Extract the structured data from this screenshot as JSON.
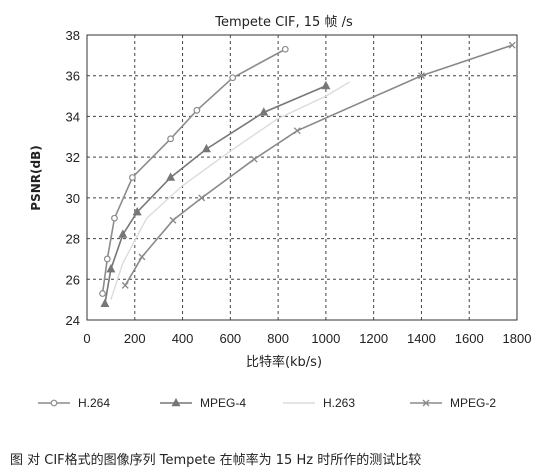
{
  "chart_data": {
    "type": "line",
    "title": "Tempete CIF, 15 帧 /s",
    "xlabel": "比特率(kb/s)",
    "ylabel": "PSNR(dB)",
    "xlim": [
      0,
      1800
    ],
    "ylim": [
      24,
      38
    ],
    "xticks": [
      0,
      200,
      400,
      600,
      800,
      1000,
      1200,
      1400,
      1600,
      1800
    ],
    "yticks": [
      24,
      26,
      28,
      30,
      32,
      34,
      36,
      38
    ],
    "grid": "dashed",
    "legend_position": "bottom",
    "series": [
      {
        "name": "H.264",
        "color": "#8c8c8c",
        "marker": "circle",
        "points": [
          [
            65,
            25.3
          ],
          [
            85,
            27.0
          ],
          [
            115,
            29.0
          ],
          [
            190,
            31.0
          ],
          [
            350,
            32.9
          ],
          [
            460,
            34.3
          ],
          [
            610,
            35.9
          ],
          [
            830,
            37.3
          ]
        ]
      },
      {
        "name": "MPEG-4",
        "color": "#777777",
        "marker": "triangle",
        "points": [
          [
            75,
            24.8
          ],
          [
            100,
            26.5
          ],
          [
            150,
            28.2
          ],
          [
            210,
            29.3
          ],
          [
            350,
            31.0
          ],
          [
            500,
            32.4
          ],
          [
            740,
            34.2
          ],
          [
            1000,
            35.5
          ]
        ]
      },
      {
        "name": "H.263",
        "color": "#dcdcdc",
        "marker": "none",
        "points": [
          [
            100,
            25.0
          ],
          [
            150,
            26.8
          ],
          [
            250,
            29.0
          ],
          [
            400,
            30.6
          ],
          [
            600,
            32.3
          ],
          [
            800,
            33.9
          ],
          [
            1000,
            35.0
          ],
          [
            1100,
            35.7
          ]
        ]
      },
      {
        "name": "MPEG-2",
        "color": "#8a8a8a",
        "marker": "x",
        "points": [
          [
            160,
            25.7
          ],
          [
            230,
            27.1
          ],
          [
            360,
            28.9
          ],
          [
            480,
            30.0
          ],
          [
            700,
            31.9
          ],
          [
            880,
            33.3
          ],
          [
            1400,
            36.0
          ],
          [
            1780,
            37.5
          ]
        ]
      }
    ]
  },
  "caption": "图 对 CIF格式的图像序列 Tempete 在帧率为 15 Hz 时所作的测试比较"
}
